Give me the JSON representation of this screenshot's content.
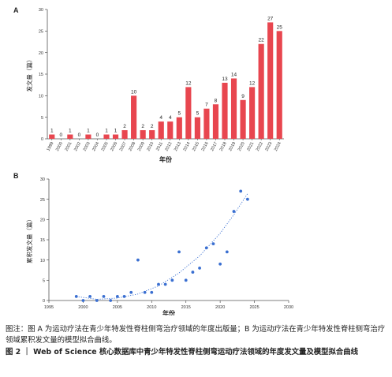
{
  "panel_a_label": "A",
  "panel_b_label": "B",
  "caption": {
    "note": "图注：图 A 为运动疗法在青少年特发性脊柱侧弯治疗领域的年度出版量；B 为运动疗法在青少年特发性脊柱侧弯治疗领域累积发文量的模型拟合曲线。",
    "title": "图 2 ｜ Web of Science 核心数据库中青少年特发性脊柱侧弯运动疗法领域的年度发文量及模型拟合曲线"
  },
  "colors": {
    "bar": "#e8464f",
    "point": "#3a6fd1",
    "fit": "#3a6fd1",
    "axis": "#555555"
  },
  "chart_data": [
    {
      "type": "bar",
      "panel": "A",
      "categories": [
        "1999",
        "2000",
        "2001",
        "2002",
        "2003",
        "2004",
        "2005",
        "2006",
        "2007",
        "2008",
        "2009",
        "2010",
        "2011",
        "2012",
        "2013",
        "2014",
        "2015",
        "2016",
        "2017",
        "2018",
        "2019",
        "2020",
        "2021",
        "2022",
        "2023",
        "2024"
      ],
      "values": [
        1,
        0,
        1,
        0,
        1,
        0,
        1,
        1,
        2,
        10,
        2,
        2,
        4,
        4,
        5,
        12,
        5,
        7,
        8,
        13,
        14,
        9,
        12,
        22,
        27,
        25
      ],
      "xlabel": "年份",
      "ylabel": "发文量（篇）",
      "ylim": [
        0,
        30
      ],
      "yticks": [
        0,
        5,
        10,
        15,
        20,
        25,
        30
      ]
    },
    {
      "type": "scatter",
      "panel": "B",
      "x": [
        1999,
        2000,
        2001,
        2002,
        2003,
        2004,
        2005,
        2006,
        2007,
        2008,
        2009,
        2010,
        2011,
        2012,
        2013,
        2014,
        2015,
        2016,
        2017,
        2018,
        2019,
        2020,
        2021,
        2022,
        2023,
        2024
      ],
      "y": [
        1,
        0,
        1,
        0,
        1,
        0,
        1,
        1,
        2,
        10,
        2,
        2,
        4,
        4,
        5,
        12,
        5,
        7,
        8,
        13,
        14,
        9,
        12,
        22,
        27,
        25
      ],
      "fit": {
        "style": "dotted",
        "x": [
          1999,
          2002,
          2005,
          2008,
          2011,
          2014,
          2017,
          2020,
          2022,
          2024
        ],
        "y": [
          1.0,
          0.3,
          0.6,
          1.6,
          3.6,
          6.8,
          11.0,
          16.6,
          21.2,
          26.4
        ]
      },
      "xlabel": "年份",
      "ylabel": "累积发文量（篇）",
      "xlim": [
        1995,
        2030
      ],
      "ylim": [
        0,
        30
      ],
      "xticks": [
        1995,
        2000,
        2005,
        2010,
        2015,
        2020,
        2025,
        2030
      ],
      "yticks": [
        0,
        5,
        10,
        15,
        20,
        25,
        30
      ]
    }
  ]
}
